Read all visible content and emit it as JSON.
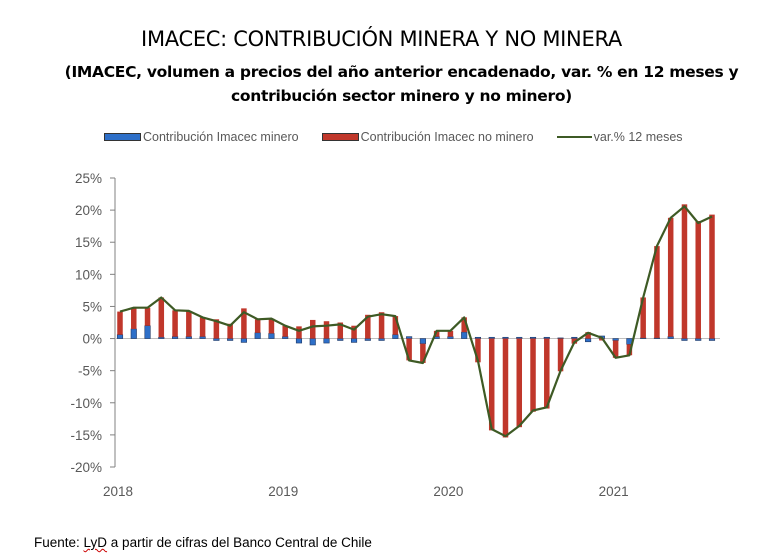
{
  "chart_data": {
    "type": "bar",
    "title": "IMACEC: CONTRIBUCIÓN MINERA Y NO MINERA",
    "subtitle": "(IMACEC, volumen a precios del año anterior encadenado, var. % en 12 meses y contribución sector minero y no minero)",
    "subtitle_lines": [
      "(IMACEC, volumen a precios del año anterior encadenado, var. % en 12 meses y",
      "contribución sector minero y no minero)"
    ],
    "xlabel": "",
    "ylabel": "",
    "ylim": [
      -20,
      25
    ],
    "yticks": [
      25,
      20,
      15,
      10,
      5,
      0,
      -5,
      -10,
      -15,
      -20
    ],
    "ytick_labels": [
      "25%",
      "20%",
      "15%",
      "10%",
      "5%",
      "0%",
      "-5%",
      "-10%",
      "-15%",
      "-20%"
    ],
    "xtick_labels": [
      {
        "label": "2018",
        "index": 0
      },
      {
        "label": "2019",
        "index": 12
      },
      {
        "label": "2020",
        "index": 24
      },
      {
        "label": "2021",
        "index": 36
      }
    ],
    "legend_position": "top",
    "grid": false,
    "categories": [
      "2018-01",
      "2018-02",
      "2018-03",
      "2018-04",
      "2018-05",
      "2018-06",
      "2018-07",
      "2018-08",
      "2018-09",
      "2018-10",
      "2018-11",
      "2018-12",
      "2019-01",
      "2019-02",
      "2019-03",
      "2019-04",
      "2019-05",
      "2019-06",
      "2019-07",
      "2019-08",
      "2019-09",
      "2019-10",
      "2019-11",
      "2019-12",
      "2020-01",
      "2020-02",
      "2020-03",
      "2020-04",
      "2020-05",
      "2020-06",
      "2020-07",
      "2020-08",
      "2020-09",
      "2020-10",
      "2020-11",
      "2020-12",
      "2021-01",
      "2021-02",
      "2021-03",
      "2021-04",
      "2021-05",
      "2021-06",
      "2021-07",
      "2021-08"
    ],
    "series": [
      {
        "name": "Contribución Imacec minero",
        "type": "stacked-bar",
        "color": "#2e6fc8",
        "values": [
          0.6,
          1.5,
          2.0,
          0.2,
          0.3,
          0.3,
          0.3,
          -0.3,
          -0.3,
          -0.6,
          0.9,
          0.8,
          0.3,
          -0.7,
          -1.0,
          -0.7,
          -0.3,
          -0.6,
          -0.3,
          -0.3,
          0.6,
          0.3,
          -0.8,
          0.3,
          0.3,
          1.0,
          0.2,
          0.2,
          0.2,
          0.2,
          0.2,
          0.2,
          0.1,
          0.2,
          -0.5,
          0.4,
          -0.3,
          -0.9,
          0.1,
          0.1,
          0.3,
          -0.3,
          -0.3,
          -0.3
        ]
      },
      {
        "name": "Contribución Imacec no minero",
        "type": "stacked-bar",
        "color": "#c0372b",
        "values": [
          3.6,
          3.3,
          2.8,
          6.2,
          4.1,
          4.0,
          3.0,
          3.0,
          2.3,
          4.7,
          2.1,
          2.3,
          1.7,
          1.9,
          2.9,
          2.7,
          2.5,
          2.0,
          3.7,
          4.1,
          2.9,
          -3.4,
          -3.0,
          0.9,
          0.9,
          2.3,
          -3.7,
          -14.3,
          -15.4,
          -13.8,
          -11.4,
          -10.9,
          -5.1,
          -0.8,
          1.0,
          -0.3,
          -2.7,
          -1.7,
          6.3,
          14.3,
          18.5,
          20.9,
          18.3,
          19.3
        ]
      },
      {
        "name": "var.% 12 meses",
        "type": "line",
        "color": "#3e5a25",
        "values": [
          4.2,
          4.8,
          4.8,
          6.4,
          4.4,
          4.3,
          3.3,
          2.7,
          2.0,
          4.1,
          3.0,
          3.1,
          2.0,
          1.2,
          1.9,
          2.0,
          2.2,
          1.4,
          3.4,
          3.8,
          3.5,
          -3.4,
          -3.8,
          1.2,
          1.2,
          3.3,
          -3.5,
          -14.1,
          -15.2,
          -13.6,
          -11.2,
          -10.7,
          -5.0,
          -0.6,
          0.9,
          0.1,
          -3.0,
          -2.6,
          6.4,
          14.4,
          18.8,
          20.6,
          18.0,
          19.0
        ]
      }
    ]
  },
  "legend": {
    "items": [
      {
        "label": "Contribución Imacec minero",
        "color": "#2e6fc8",
        "kind": "bar"
      },
      {
        "label": "Contribución Imacec no minero",
        "color": "#c0372b",
        "kind": "bar"
      },
      {
        "label": "var.% 12 meses",
        "color": "#3e5a25",
        "kind": "line"
      }
    ]
  },
  "source": {
    "prefix": "Fuente: ",
    "underlined": "LyD",
    "suffix": " a partir de cifras del Banco Central de Chile"
  }
}
